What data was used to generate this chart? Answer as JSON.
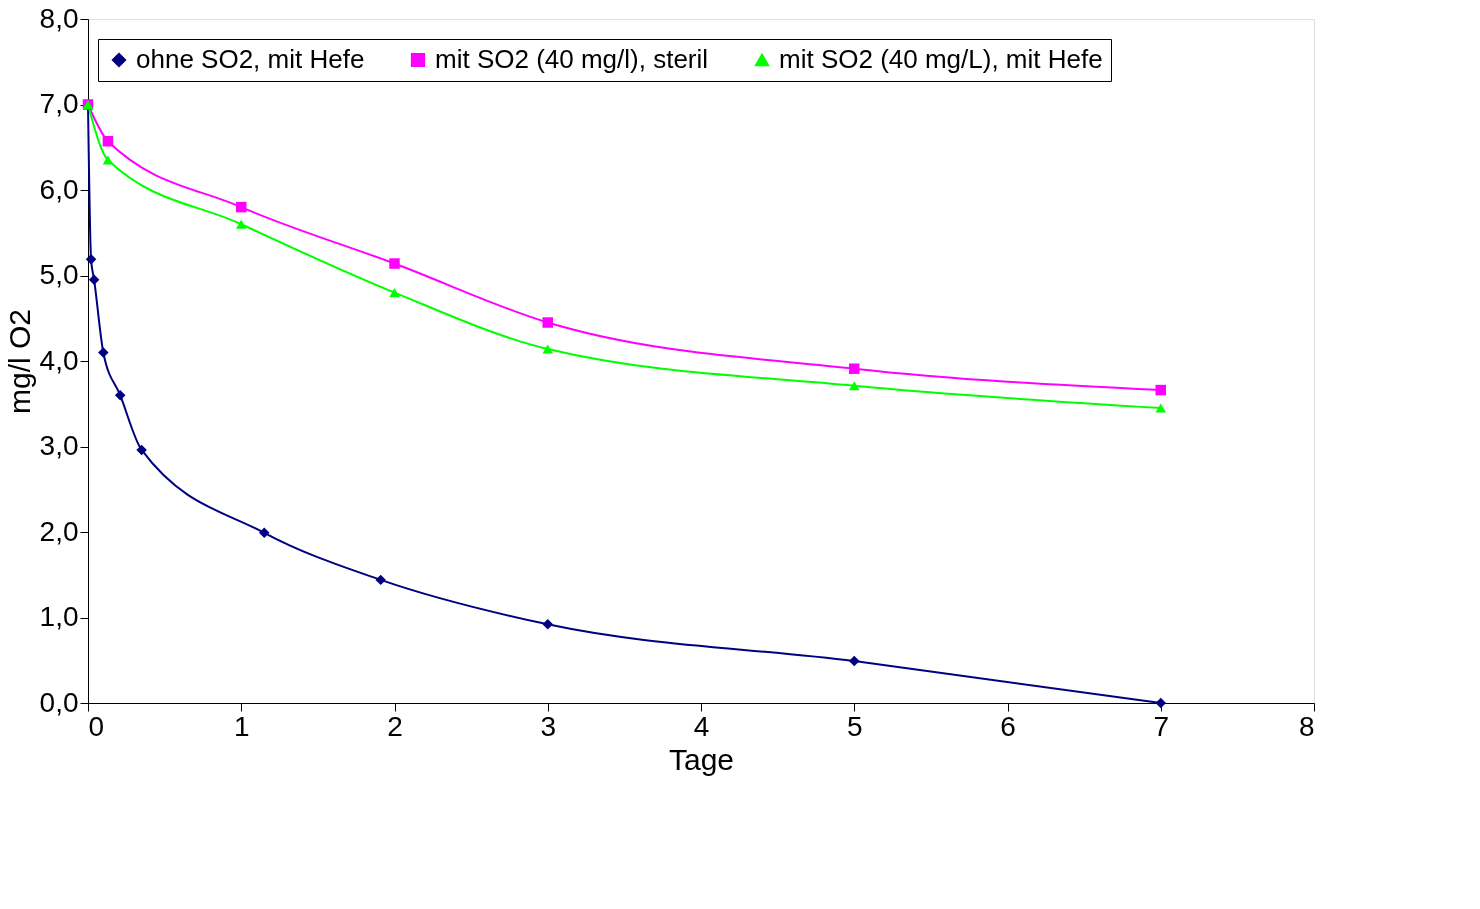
{
  "chart_data": {
    "type": "line",
    "xlabel": "Tage",
    "ylabel": "mg/l O2",
    "xlim": [
      0,
      8
    ],
    "xticks": [
      0,
      1,
      2,
      3,
      4,
      5,
      6,
      7,
      8
    ],
    "ylim": [
      0,
      8
    ],
    "yticks": [
      {
        "value": 0,
        "label": "0,0"
      },
      {
        "value": 1,
        "label": "1,0"
      },
      {
        "value": 2,
        "label": "2,0"
      },
      {
        "value": 3,
        "label": "3,0"
      },
      {
        "value": 4,
        "label": "4,0"
      },
      {
        "value": 5,
        "label": "5,0"
      },
      {
        "value": 6,
        "label": "6,0"
      },
      {
        "value": 7,
        "label": "7,0"
      },
      {
        "value": 8,
        "label": "8,0"
      }
    ],
    "grid": false,
    "legend": "top",
    "line_style": "solid",
    "series": [
      {
        "name": "ohne SO2, mit Hefe",
        "color": "#000080",
        "marker": "diamond",
        "x": [
          0,
          0.02,
          0.04,
          0.1,
          0.21,
          0.35,
          1.15,
          1.91,
          3.0,
          5.0,
          7.0
        ],
        "values": [
          7.0,
          5.19,
          4.95,
          4.1,
          3.6,
          2.96,
          1.99,
          1.44,
          0.92,
          0.49,
          0.0
        ]
      },
      {
        "name": "mit SO2 (40 mg/l), steril",
        "color": "#ff00ff",
        "marker": "square",
        "x": [
          0,
          0.13,
          1.0,
          2.0,
          3.0,
          5.0,
          7.0
        ],
        "values": [
          7.0,
          6.57,
          5.8,
          5.14,
          4.45,
          3.91,
          3.66
        ]
      },
      {
        "name": "mit SO2 (40 mg/L), mit Hefe",
        "color": "#00ff00",
        "marker": "triangle",
        "x": [
          0,
          0.13,
          1.0,
          2.0,
          3.0,
          5.0,
          7.0
        ],
        "values": [
          7.0,
          6.35,
          5.6,
          4.8,
          4.14,
          3.71,
          3.45
        ]
      }
    ]
  }
}
